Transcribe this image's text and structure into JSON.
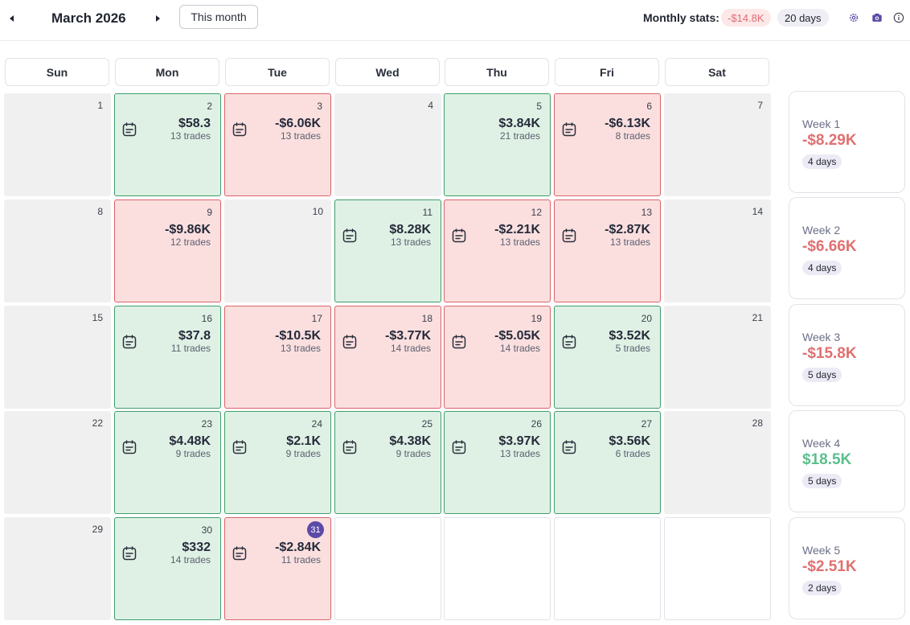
{
  "header": {
    "month_title": "March 2026",
    "this_month_label": "This month",
    "stats_label": "Monthly stats:",
    "stats_pnl": "-$14.8K",
    "stats_days": "20 days"
  },
  "weekdays": [
    "Sun",
    "Mon",
    "Tue",
    "Wed",
    "Thu",
    "Fri",
    "Sat"
  ],
  "days": {
    "d1": {
      "day": "1"
    },
    "d2": {
      "day": "2",
      "pnl": "$58.3",
      "trades": "13 trades"
    },
    "d3": {
      "day": "3",
      "pnl": "-$6.06K",
      "trades": "13 trades"
    },
    "d4": {
      "day": "4"
    },
    "d5": {
      "day": "5",
      "pnl": "$3.84K",
      "trades": "21 trades"
    },
    "d6": {
      "day": "6",
      "pnl": "-$6.13K",
      "trades": "8 trades"
    },
    "d7": {
      "day": "7"
    },
    "d8": {
      "day": "8"
    },
    "d9": {
      "day": "9",
      "pnl": "-$9.86K",
      "trades": "12 trades"
    },
    "d10": {
      "day": "10"
    },
    "d11": {
      "day": "11",
      "pnl": "$8.28K",
      "trades": "13 trades"
    },
    "d12": {
      "day": "12",
      "pnl": "-$2.21K",
      "trades": "13 trades"
    },
    "d13": {
      "day": "13",
      "pnl": "-$2.87K",
      "trades": "13 trades"
    },
    "d14": {
      "day": "14"
    },
    "d15": {
      "day": "15"
    },
    "d16": {
      "day": "16",
      "pnl": "$37.8",
      "trades": "11 trades"
    },
    "d17": {
      "day": "17",
      "pnl": "-$10.5K",
      "trades": "13 trades"
    },
    "d18": {
      "day": "18",
      "pnl": "-$3.77K",
      "trades": "14 trades"
    },
    "d19": {
      "day": "19",
      "pnl": "-$5.05K",
      "trades": "14 trades"
    },
    "d20": {
      "day": "20",
      "pnl": "$3.52K",
      "trades": "5 trades"
    },
    "d21": {
      "day": "21"
    },
    "d22": {
      "day": "22"
    },
    "d23": {
      "day": "23",
      "pnl": "$4.48K",
      "trades": "9 trades"
    },
    "d24": {
      "day": "24",
      "pnl": "$2.1K",
      "trades": "9 trades"
    },
    "d25": {
      "day": "25",
      "pnl": "$4.38K",
      "trades": "9 trades"
    },
    "d26": {
      "day": "26",
      "pnl": "$3.97K",
      "trades": "13 trades"
    },
    "d27": {
      "day": "27",
      "pnl": "$3.56K",
      "trades": "6 trades"
    },
    "d28": {
      "day": "28"
    },
    "d29": {
      "day": "29"
    },
    "d30": {
      "day": "30",
      "pnl": "$332",
      "trades": "14 trades"
    },
    "d31": {
      "day": "31",
      "pnl": "-$2.84K",
      "trades": "11 trades"
    }
  },
  "weeks": [
    {
      "label": "Week 1",
      "pnl": "-$8.29K",
      "days": "4 days"
    },
    {
      "label": "Week 2",
      "pnl": "-$6.66K",
      "days": "4 days"
    },
    {
      "label": "Week 3",
      "pnl": "-$15.8K",
      "days": "5 days"
    },
    {
      "label": "Week 4",
      "pnl": "$18.5K",
      "days": "5 days"
    },
    {
      "label": "Week 5",
      "pnl": "-$2.51K",
      "days": "2 days"
    }
  ],
  "icons": {
    "prev": "caret-left-icon",
    "next": "caret-right-icon",
    "settings": "gear-icon",
    "screenshot": "camera-icon",
    "info": "info-icon",
    "note": "journal-note-icon"
  },
  "colors": {
    "win_bg": "#dff1e5",
    "win_border": "#3f9e6b",
    "loss_bg": "#fbdfdf",
    "loss_border": "#d9646a",
    "positive_text": "#5bbf8c",
    "negative_text": "#e07070",
    "accent": "#5b4aa8"
  }
}
